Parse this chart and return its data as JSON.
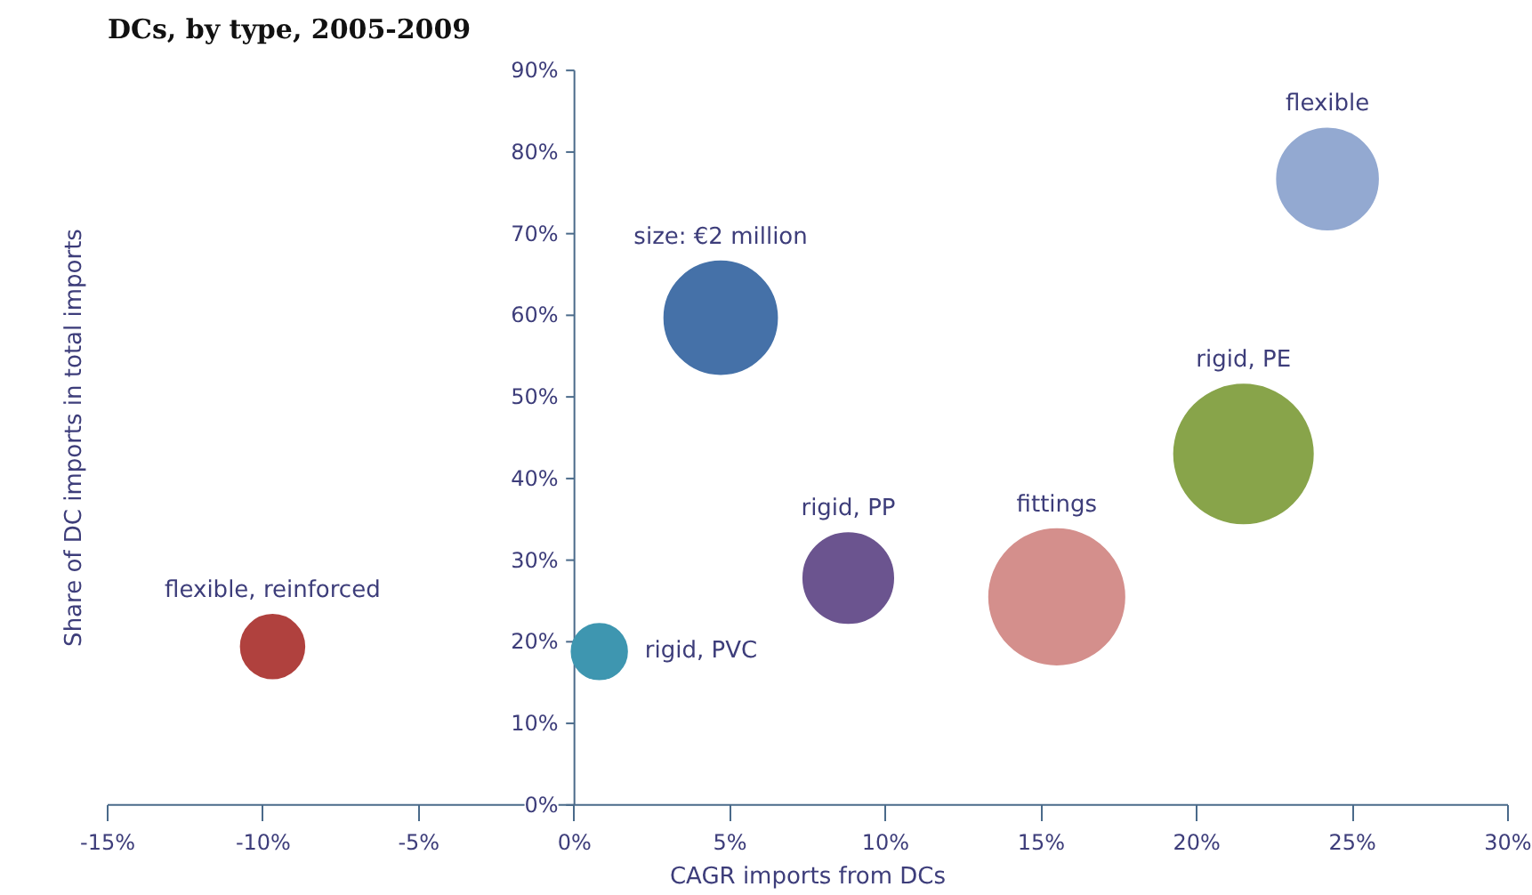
{
  "chart_data": {
    "type": "bubble",
    "title": "DCs, by type, 2005-2009",
    "xlabel": "CAGR imports from DCs",
    "ylabel": "Share of DC imports in total imports",
    "series": [
      {
        "name": "flexible, reinforced",
        "color": "#b0413e",
        "x": [
          -9.7
        ],
        "values": [
          19.4
        ],
        "sizes": [
          0.21
        ]
      },
      {
        "name": "rigid, PVC",
        "color": "#3e96b0",
        "x": [
          0.8
        ],
        "values": [
          18.8
        ],
        "sizes": [
          0.16
        ]
      },
      {
        "color": "#4571a8",
        "x": [
          4.7
        ],
        "values": [
          59.7
        ],
        "sizes": [
          0.66
        ]
      },
      {
        "name": "rigid, PP",
        "color": "#6b548f",
        "x": [
          8.8
        ],
        "values": [
          27.8
        ],
        "sizes": [
          0.42
        ]
      },
      {
        "name": "fittings",
        "color": "#d48f8c",
        "x": [
          15.5
        ],
        "values": [
          25.5
        ],
        "sizes": [
          0.95
        ]
      },
      {
        "name": "rigid, PE",
        "color": "#88a44a",
        "x": [
          21.5
        ],
        "values": [
          43
        ],
        "sizes": [
          1
        ]
      },
      {
        "name": "flexible",
        "color": "#93a9d1",
        "x": [
          24.2
        ],
        "values": [
          76.7
        ],
        "sizes": [
          0.53
        ]
      }
    ],
    "annotations": [
      {
        "text": "size: €2 million",
        "x": 4.7,
        "y": 59.7
      }
    ],
    "xlim": [
      -15,
      30
    ],
    "xticks": [
      {
        "value": -15,
        "label": "-15%"
      },
      {
        "value": -10,
        "label": "-10%"
      },
      {
        "value": -5,
        "label": "-5%"
      },
      {
        "value": 0,
        "label": "0%"
      },
      {
        "value": 5,
        "label": "5%"
      },
      {
        "value": 10,
        "label": "10%"
      },
      {
        "value": 15,
        "label": "15%"
      },
      {
        "value": 20,
        "label": "20%"
      },
      {
        "value": 25,
        "label": "25%"
      },
      {
        "value": 30,
        "label": "30%"
      }
    ],
    "ylim": [
      0,
      90
    ],
    "yticks": [
      {
        "value": 0,
        "label": "0%"
      },
      {
        "value": 10,
        "label": "10%"
      },
      {
        "value": 20,
        "label": "20%"
      },
      {
        "value": 30,
        "label": "30%"
      },
      {
        "value": 40,
        "label": "40%"
      },
      {
        "value": 50,
        "label": "50%"
      },
      {
        "value": 60,
        "label": "60%"
      },
      {
        "value": 70,
        "label": "70%"
      },
      {
        "value": 80,
        "label": "80%"
      },
      {
        "value": 90,
        "label": "90%"
      }
    ]
  }
}
